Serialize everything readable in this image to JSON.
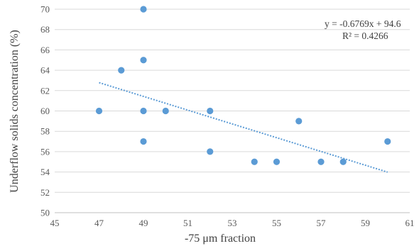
{
  "chart_data": {
    "type": "scatter",
    "title": "",
    "xlabel": "-75 μm fraction",
    "ylabel": "Underflow solids concentration (%)",
    "xlim": [
      45,
      61
    ],
    "ylim": [
      50,
      70
    ],
    "xticks": [
      45,
      47,
      49,
      51,
      53,
      55,
      57,
      59,
      61
    ],
    "yticks": [
      50,
      52,
      54,
      56,
      58,
      60,
      62,
      64,
      66,
      68,
      70
    ],
    "grid": "horizontal",
    "legend": "none",
    "series": [
      {
        "color": "#5b9bd5",
        "x": [
          47,
          48,
          49,
          49,
          49,
          49,
          50,
          52,
          52,
          54,
          55,
          56,
          57,
          58,
          60
        ],
        "y": [
          60,
          64,
          70,
          65,
          60,
          57,
          60,
          60,
          56,
          55,
          55,
          59,
          55,
          55,
          57
        ]
      }
    ],
    "trendline": {
      "type": "linear",
      "style": "dotted",
      "color": "#5b9bd5",
      "x_range": [
        47,
        60
      ],
      "slope": -0.6769,
      "intercept": 94.6,
      "equation": "y = -0.6769x + 94.6",
      "r2": "R² = 0.4266"
    }
  }
}
